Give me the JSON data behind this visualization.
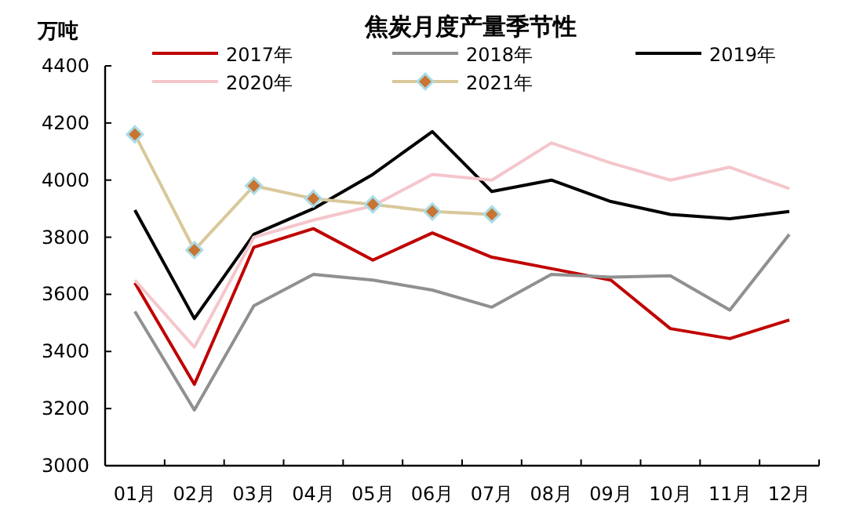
{
  "chart_data": {
    "type": "line",
    "title": "焦炭月度产量季节性",
    "ylabel": "万吨",
    "categories": [
      "01月",
      "02月",
      "03月",
      "04月",
      "05月",
      "06月",
      "07月",
      "08月",
      "09月",
      "10月",
      "11月",
      "12月"
    ],
    "series": [
      {
        "name": "2017年",
        "color": "#c00000",
        "values": [
          3640,
          3285,
          3765,
          3830,
          3720,
          3815,
          3730,
          3690,
          3650,
          3480,
          3445,
          3510
        ]
      },
      {
        "name": "2018年",
        "color": "#909090",
        "values": [
          3540,
          3195,
          3560,
          3670,
          3650,
          3615,
          3555,
          3670,
          3660,
          3665,
          3545,
          3810
        ]
      },
      {
        "name": "2019年",
        "color": "#000000",
        "values": [
          3895,
          3515,
          3810,
          3900,
          4020,
          4170,
          3960,
          4000,
          3925,
          3880,
          3865,
          3890
        ]
      },
      {
        "name": "2020年",
        "color": "#f4c6cc",
        "values": [
          3650,
          3415,
          3800,
          3860,
          3910,
          4020,
          4000,
          4130,
          4060,
          4000,
          4045,
          3970
        ]
      },
      {
        "name": "2021年",
        "color": "#d9c89a",
        "marker": "diamond",
        "values": [
          4160,
          3755,
          3980,
          3935,
          3915,
          3890,
          3880,
          null,
          null,
          null,
          null,
          null
        ]
      }
    ],
    "ylim": [
      3000,
      4400
    ],
    "yticks": [
      3000,
      3200,
      3400,
      3600,
      3800,
      4000,
      4200,
      4400
    ],
    "grid": false,
    "legend": "top",
    "marker": "none",
    "line_style": "solid"
  }
}
